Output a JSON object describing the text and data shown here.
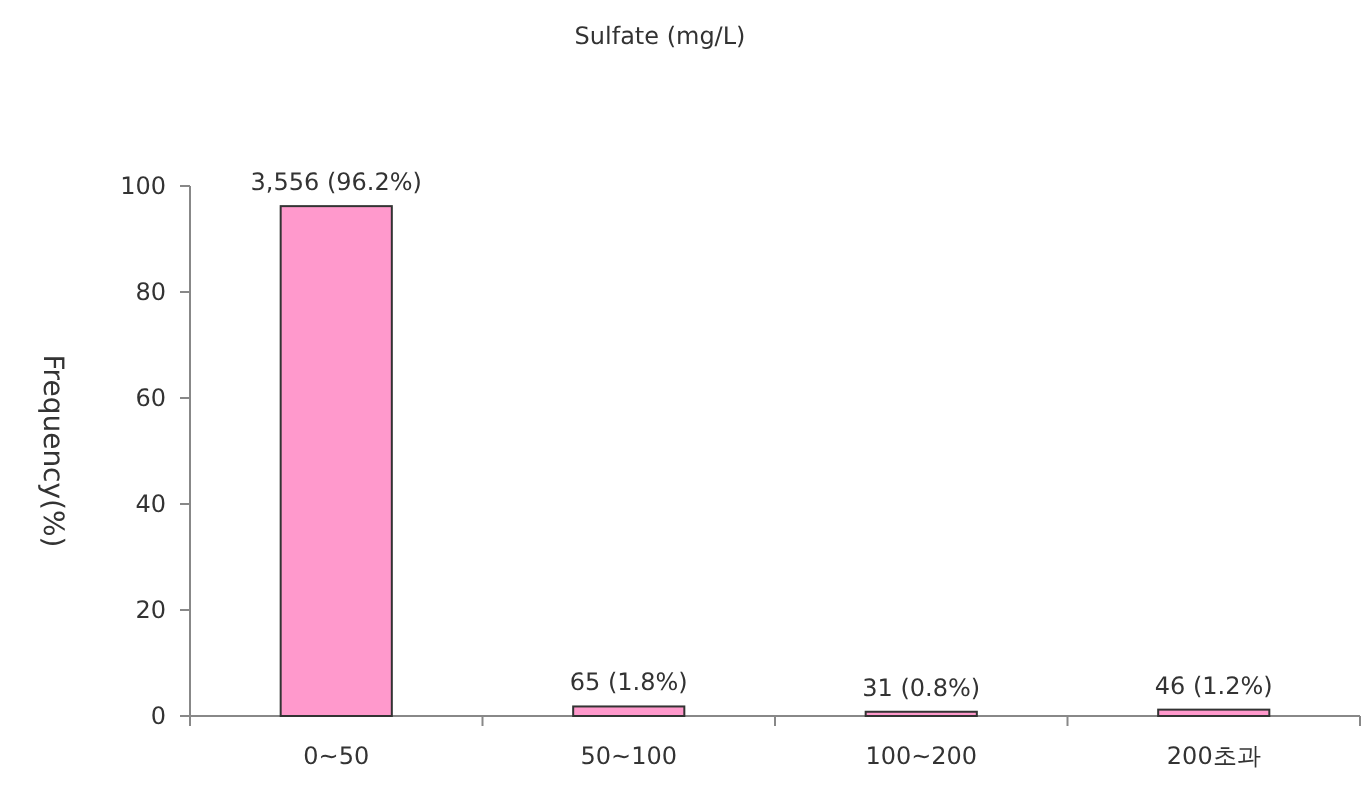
{
  "chart_data": {
    "type": "bar",
    "title": "Sulfate (mg/L)",
    "ylabel": "Frequency(%)",
    "categories": [
      "0~50",
      "50~100",
      "100~200",
      "200초과"
    ],
    "values": [
      96.2,
      1.8,
      0.8,
      1.2
    ],
    "value_labels": [
      "3,556 (96.2%)",
      "65 (1.8%)",
      "31 (0.8%)",
      "46 (1.2%)"
    ],
    "color": "#ff99cc",
    "ylim": [
      0,
      100
    ],
    "yticks": [
      0,
      20,
      40,
      60,
      80,
      100
    ],
    "grid": false
  }
}
